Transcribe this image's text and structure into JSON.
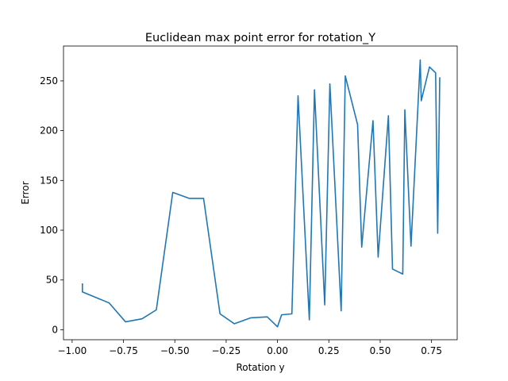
{
  "chart_data": {
    "type": "line",
    "title": "Euclidean max point error for rotation_Y",
    "xlabel": "Rotation y",
    "ylabel": "Error",
    "xlim": [
      -1.042,
      0.875
    ],
    "ylim": [
      -10,
      285
    ],
    "grid": false,
    "x_ticks": [
      -1.0,
      -0.75,
      -0.5,
      -0.25,
      0.0,
      0.25,
      0.5,
      0.75
    ],
    "x_tick_labels": [
      "−1.00",
      "−0.75",
      "−0.50",
      "−0.25",
      "0.00",
      "0.25",
      "0.50",
      "0.75"
    ],
    "y_ticks": [
      0,
      50,
      100,
      150,
      200,
      250
    ],
    "y_tick_labels": [
      "0",
      "50",
      "100",
      "150",
      "200",
      "250"
    ],
    "series": [
      {
        "color": "#1f77b4",
        "points": [
          [
            -0.95,
            46
          ],
          [
            -0.95,
            42
          ],
          [
            -0.95,
            38
          ],
          [
            -0.82,
            27
          ],
          [
            -0.74,
            8
          ],
          [
            -0.66,
            11
          ],
          [
            -0.59,
            20
          ],
          [
            -0.51,
            138
          ],
          [
            -0.43,
            132
          ],
          [
            -0.36,
            132
          ],
          [
            -0.28,
            16
          ],
          [
            -0.21,
            6
          ],
          [
            -0.13,
            12
          ],
          [
            -0.05,
            13
          ],
          [
            0.0,
            3
          ],
          [
            0.02,
            15
          ],
          [
            0.07,
            16
          ],
          [
            0.1,
            235
          ],
          [
            0.155,
            10
          ],
          [
            0.18,
            241
          ],
          [
            0.23,
            25
          ],
          [
            0.255,
            247
          ],
          [
            0.31,
            19
          ],
          [
            0.33,
            255
          ],
          [
            0.39,
            206
          ],
          [
            0.41,
            83
          ],
          [
            0.465,
            210
          ],
          [
            0.49,
            73
          ],
          [
            0.54,
            215
          ],
          [
            0.56,
            61
          ],
          [
            0.61,
            56
          ],
          [
            0.62,
            221
          ],
          [
            0.65,
            84
          ],
          [
            0.695,
            271
          ],
          [
            0.7,
            230
          ],
          [
            0.74,
            264
          ],
          [
            0.77,
            258
          ],
          [
            0.78,
            97
          ],
          [
            0.79,
            253
          ]
        ]
      }
    ]
  }
}
